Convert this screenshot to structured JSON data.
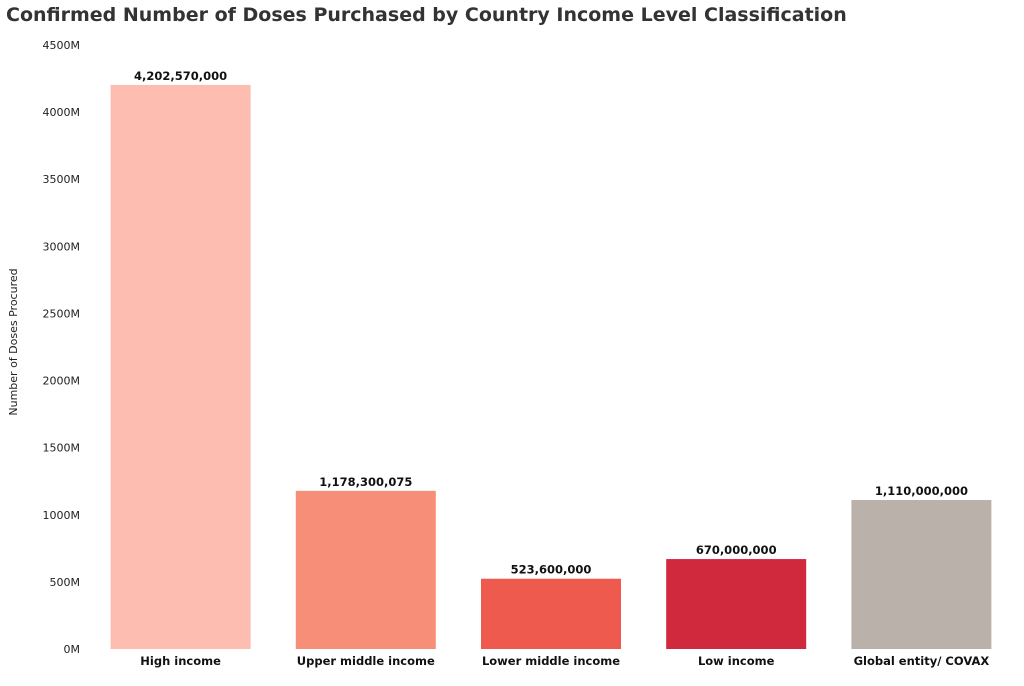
{
  "chart_data": {
    "type": "bar",
    "title": "Confirmed Number of Doses Purchased by Country Income Level Classification",
    "xlabel": "",
    "ylabel": "Number of Doses Procured",
    "ylim": [
      0,
      4500000000
    ],
    "yticks": [
      {
        "value": 0,
        "label": "0M"
      },
      {
        "value": 500000000,
        "label": "500M"
      },
      {
        "value": 1000000000,
        "label": "1000M"
      },
      {
        "value": 1500000000,
        "label": "1500M"
      },
      {
        "value": 2000000000,
        "label": "2000M"
      },
      {
        "value": 2500000000,
        "label": "2500M"
      },
      {
        "value": 3000000000,
        "label": "3000M"
      },
      {
        "value": 3500000000,
        "label": "3500M"
      },
      {
        "value": 4000000000,
        "label": "4000M"
      },
      {
        "value": 4500000000,
        "label": "4500M"
      }
    ],
    "categories": [
      "High income",
      "Upper middle income",
      "Lower middle income",
      "Low income",
      "Global entity/ COVAX"
    ],
    "values": [
      4202570000,
      1178300075,
      523600000,
      670000000,
      1110000000
    ],
    "data_labels": [
      "4,202,570,000",
      "1,178,300,075",
      "523,600,000",
      "670,000,000",
      "1,110,000,000"
    ],
    "colors": [
      "#FDBEB1",
      "#F78F78",
      "#EE5B4E",
      "#D0283D",
      "#BAB1AB"
    ],
    "grid": false,
    "legend": "none"
  }
}
